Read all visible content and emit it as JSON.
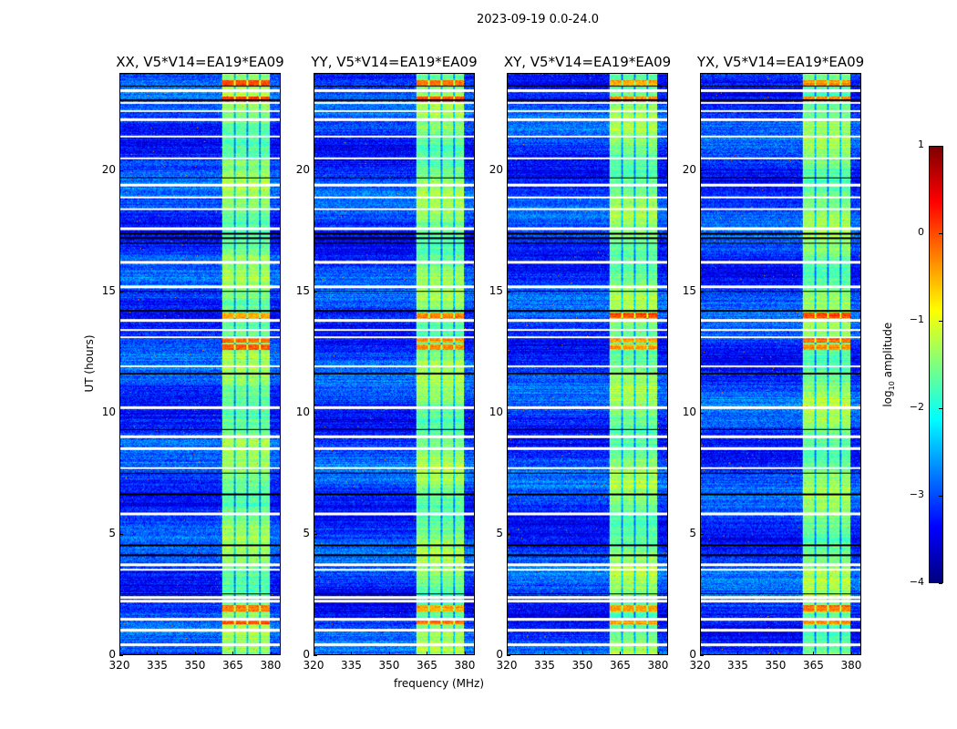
{
  "chart_data": {
    "type": "heatmap",
    "title": "2023-09-19 0.0-24.0",
    "xlabel": "frequency (MHz)",
    "ylabel": "UT (hours)",
    "xlim": [
      320,
      384
    ],
    "ylim": [
      0,
      24
    ],
    "xticks": [
      320,
      335,
      350,
      365,
      380
    ],
    "yticks": [
      0,
      5,
      10,
      15,
      20
    ],
    "panels": [
      {
        "title": "XX, V5*V14=EA19*EA09"
      },
      {
        "title": "YY, V5*V14=EA19*EA09"
      },
      {
        "title": "XY, V5*V14=EA19*EA09"
      },
      {
        "title": "YX, V5*V14=EA19*EA09"
      }
    ],
    "colorbar": {
      "label_prefix": "log",
      "label_sub": "10",
      "label_suffix": " amplitude",
      "range": [
        -4,
        1
      ],
      "ticks": [
        -4,
        -3,
        -2,
        -1,
        0,
        1
      ],
      "tick_labels": [
        "−4",
        "−3",
        "−2",
        "−1",
        "0",
        "1"
      ],
      "colormap": "jet"
    },
    "features": {
      "background_level": -3.1,
      "band_mhz": [
        361,
        380
      ],
      "band_level": -1.5,
      "channel_gaps_mhz": [
        366,
        371,
        376
      ],
      "flagged_white_hours": [
        0.4,
        1.0,
        1.45,
        2.2,
        2.35,
        3.5,
        3.7,
        5.8,
        7.7,
        8.5,
        9.0,
        10.2,
        11.9,
        13.1,
        13.4,
        13.8,
        15.2,
        16.2,
        17.6,
        18.4,
        18.9,
        19.4,
        20.5,
        21.4,
        22.1,
        22.45,
        22.8,
        23.3
      ],
      "black_hours": [
        2.5,
        4.1,
        4.5,
        6.6,
        7.5,
        9.3,
        11.6,
        14.2,
        15.0,
        17.0,
        17.2,
        17.4,
        19.7,
        22.9,
        23.5
      ],
      "strong_hours": [
        1.35,
        1.9,
        12.7,
        13.0,
        14.0,
        22.95,
        23.6
      ]
    }
  }
}
